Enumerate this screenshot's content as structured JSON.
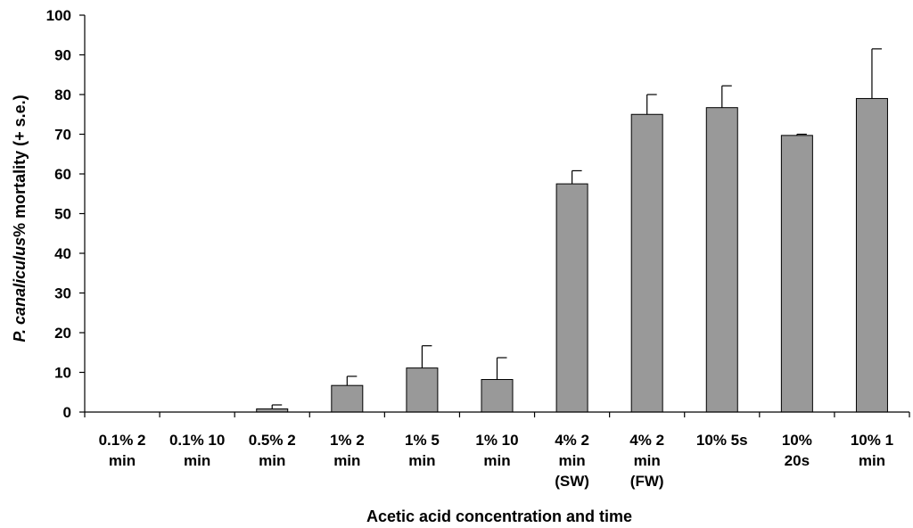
{
  "chart_data": {
    "type": "bar",
    "categories": [
      [
        "0.1% 2",
        "min"
      ],
      [
        "0.1% 10",
        "min"
      ],
      [
        "0.5% 2",
        "min"
      ],
      [
        "1% 2",
        "min"
      ],
      [
        "1% 5",
        "min"
      ],
      [
        "1% 10",
        "min"
      ],
      [
        "4% 2",
        "min",
        "(SW)"
      ],
      [
        "4% 2",
        "min",
        "(FW)"
      ],
      [
        "10% 5s"
      ],
      [
        "10%",
        "20s"
      ],
      [
        "10% 1",
        "min"
      ]
    ],
    "values": [
      0,
      0,
      0.8,
      6.7,
      11.1,
      8.2,
      57.5,
      75,
      76.7,
      69.7,
      79
    ],
    "errors": [
      0,
      0,
      1.0,
      2.3,
      5.6,
      5.5,
      3.3,
      5.0,
      5.5,
      0.3,
      12.5
    ],
    "xlabel": "Acetic acid concentration and time",
    "ylabel_italic": "P. canaliculus",
    "ylabel_rest": "% mortality (+ s.e.)",
    "ylim": [
      0,
      100
    ],
    "yticks": [
      0,
      10,
      20,
      30,
      40,
      50,
      60,
      70,
      80,
      90,
      100
    ],
    "bar_color": "#999999",
    "grid": false
  }
}
